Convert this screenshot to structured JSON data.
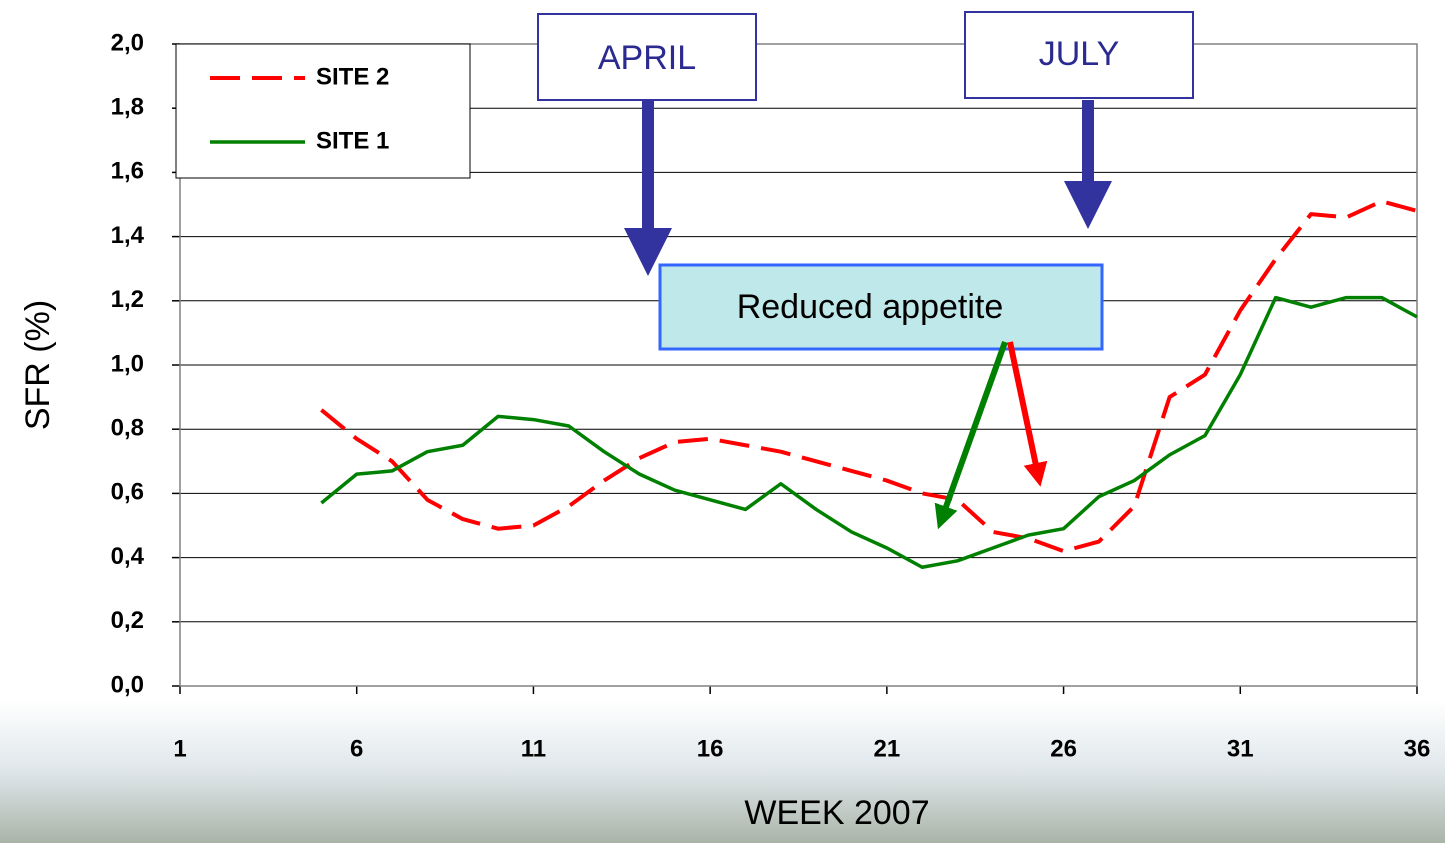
{
  "chart_data": {
    "type": "line",
    "x_label": "WEEK 2007",
    "y_label": "SFR (%)",
    "x": [
      5,
      6,
      7,
      8,
      9,
      10,
      11,
      12,
      13,
      14,
      15,
      16,
      17,
      18,
      19,
      20,
      21,
      22,
      23,
      24,
      25,
      26,
      27,
      28,
      29,
      30,
      31,
      32,
      33,
      34,
      35,
      36
    ],
    "series": [
      {
        "name": "SITE 2",
        "color": "#ff0000",
        "values": [
          0.86,
          0.77,
          0.7,
          0.58,
          0.52,
          0.49,
          0.5,
          0.56,
          0.64,
          0.71,
          0.76,
          0.77,
          0.75,
          0.73,
          0.7,
          0.67,
          0.64,
          0.6,
          0.58,
          0.48,
          0.46,
          0.42,
          0.45,
          0.56,
          0.9,
          0.97,
          1.17,
          1.33,
          1.47,
          1.46,
          1.51,
          1.48
        ]
      },
      {
        "name": "SITE 1",
        "color": "#008000",
        "values": [
          0.57,
          0.66,
          0.67,
          0.73,
          0.75,
          0.84,
          0.83,
          0.81,
          0.73,
          0.66,
          0.61,
          0.58,
          0.55,
          0.63,
          0.55,
          0.48,
          0.43,
          0.37,
          0.39,
          0.43,
          0.47,
          0.49,
          0.59,
          0.64,
          0.72,
          0.78,
          0.97,
          1.21,
          1.18,
          1.21,
          1.21,
          1.15
        ]
      }
    ],
    "xlim": [
      1,
      36
    ],
    "xticks": [
      1,
      6,
      11,
      16,
      21,
      26,
      31,
      36
    ],
    "ylim": [
      0,
      2
    ],
    "yticks": [
      {
        "value": 0,
        "label": "0,0"
      },
      {
        "value": 0.2,
        "label": "0,2"
      },
      {
        "value": 0.4,
        "label": "0,4"
      },
      {
        "value": 0.6,
        "label": "0,6"
      },
      {
        "value": 0.8,
        "label": "0,8"
      },
      {
        "value": 1,
        "label": "1,0"
      },
      {
        "value": 1.2,
        "label": "1,2"
      },
      {
        "value": 1.4,
        "label": "1,4"
      },
      {
        "value": 1.6,
        "label": "1,6"
      },
      {
        "value": 1.8,
        "label": "1,8"
      },
      {
        "value": 2,
        "label": "2,0"
      }
    ],
    "grid": true,
    "annotations": [
      "APRIL",
      "JULY",
      "Reduced appetite"
    ]
  }
}
